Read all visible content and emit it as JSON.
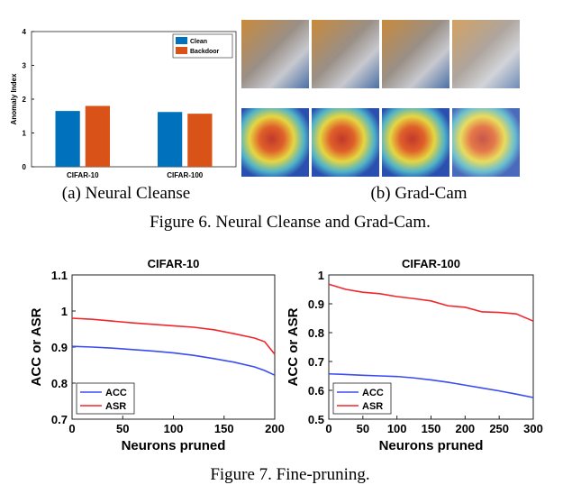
{
  "chart_data": [
    {
      "type": "bar",
      "ylabel": "Anomaly Index",
      "categories": [
        "CIFAR-10",
        "CIFAR-100"
      ],
      "series": [
        {
          "name": "Clean",
          "color": "#0072bd",
          "values": [
            1.65,
            1.62
          ]
        },
        {
          "name": "Backdoor",
          "color": "#d95319",
          "values": [
            1.8,
            1.57
          ]
        }
      ],
      "ylim": [
        0,
        4
      ],
      "yticks": [
        0,
        1,
        2,
        3,
        4
      ],
      "legend": "upper right"
    },
    {
      "type": "line",
      "title": "CIFAR-10",
      "xlabel": "Neurons pruned",
      "ylabel": "ACC or ASR",
      "x": [
        0,
        20,
        40,
        60,
        80,
        100,
        120,
        140,
        160,
        180,
        190,
        200
      ],
      "series": [
        {
          "name": "ACC",
          "color": "#3b4cf0",
          "values": [
            0.902,
            0.9,
            0.897,
            0.893,
            0.889,
            0.884,
            0.877,
            0.868,
            0.858,
            0.845,
            0.835,
            0.822
          ]
        },
        {
          "name": "ASR",
          "color": "#f0262b",
          "values": [
            0.98,
            0.977,
            0.972,
            0.967,
            0.963,
            0.959,
            0.955,
            0.948,
            0.937,
            0.925,
            0.915,
            0.88
          ]
        }
      ],
      "xlim": [
        0,
        200
      ],
      "xticks": [
        0,
        50,
        100,
        150,
        200
      ],
      "ylim": [
        0.7,
        1.1
      ],
      "yticks": [
        0.7,
        0.8,
        0.9,
        1,
        1.1
      ],
      "legend": "lower left"
    },
    {
      "type": "line",
      "title": "CIFAR-100",
      "xlabel": "Neurons pruned",
      "ylabel": "ACC or ASR",
      "x": [
        0,
        25,
        50,
        75,
        100,
        125,
        150,
        175,
        200,
        225,
        250,
        275,
        300
      ],
      "series": [
        {
          "name": "ACC",
          "color": "#3b4cf0",
          "values": [
            0.657,
            0.655,
            0.652,
            0.65,
            0.648,
            0.643,
            0.636,
            0.628,
            0.618,
            0.608,
            0.598,
            0.587,
            0.575
          ]
        },
        {
          "name": "ASR",
          "color": "#f0262b",
          "values": [
            0.968,
            0.95,
            0.94,
            0.935,
            0.925,
            0.918,
            0.91,
            0.893,
            0.888,
            0.872,
            0.87,
            0.865,
            0.84
          ]
        }
      ],
      "xlim": [
        0,
        300
      ],
      "xticks": [
        0,
        50,
        100,
        150,
        200,
        250,
        300
      ],
      "ylim": [
        0.5,
        1
      ],
      "yticks": [
        0.5,
        0.6,
        0.7,
        0.8,
        0.9,
        1
      ],
      "legend": "lower left"
    }
  ],
  "figure6": {
    "subcaption_a": "(a) Neural Cleanse",
    "subcaption_b": "(b) Grad-Cam",
    "caption": "Figure 6. Neural Cleanse and Grad-Cam."
  },
  "figure7": {
    "caption": "Figure 7. Fine-pruning."
  }
}
